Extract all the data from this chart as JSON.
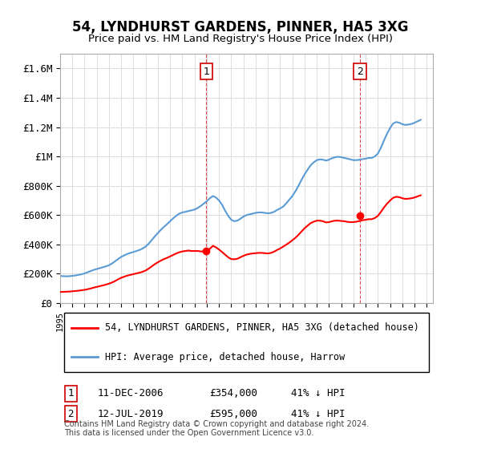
{
  "title": "54, LYNDHURST GARDENS, PINNER, HA5 3XG",
  "subtitle": "Price paid vs. HM Land Registry's House Price Index (HPI)",
  "title_fontsize": 13,
  "subtitle_fontsize": 11,
  "ylabel_ticks": [
    "£0",
    "£200K",
    "£400K",
    "£600K",
    "£800K",
    "£1M",
    "£1.2M",
    "£1.4M",
    "£1.6M"
  ],
  "ytick_values": [
    0,
    200000,
    400000,
    600000,
    800000,
    1000000,
    1200000,
    1400000,
    1600000
  ],
  "ylim": [
    0,
    1700000
  ],
  "xlim_start": 1995.0,
  "xlim_end": 2025.5,
  "hpi_color": "#5B9BD5",
  "price_color": "#FF0000",
  "marker1_x": 2006.95,
  "marker1_y": 354000,
  "marker2_x": 2019.54,
  "marker2_y": 595000,
  "vline1_x": 2006.95,
  "vline2_x": 2019.54,
  "legend_label1": "54, LYNDHURST GARDENS, PINNER, HA5 3XG (detached house)",
  "legend_label2": "HPI: Average price, detached house, Harrow",
  "table_row1": [
    "1",
    "11-DEC-2006",
    "£354,000",
    "41% ↓ HPI"
  ],
  "table_row2": [
    "2",
    "12-JUL-2019",
    "£595,000",
    "41% ↓ HPI"
  ],
  "footnote": "Contains HM Land Registry data © Crown copyright and database right 2024.\nThis data is licensed under the Open Government Licence v3.0.",
  "hpi_data_x": [
    1995.0,
    1995.25,
    1995.5,
    1995.75,
    1996.0,
    1996.25,
    1996.5,
    1996.75,
    1997.0,
    1997.25,
    1997.5,
    1997.75,
    1998.0,
    1998.25,
    1998.5,
    1998.75,
    1999.0,
    1999.25,
    1999.5,
    1999.75,
    2000.0,
    2000.25,
    2000.5,
    2000.75,
    2001.0,
    2001.25,
    2001.5,
    2001.75,
    2002.0,
    2002.25,
    2002.5,
    2002.75,
    2003.0,
    2003.25,
    2003.5,
    2003.75,
    2004.0,
    2004.25,
    2004.5,
    2004.75,
    2005.0,
    2005.25,
    2005.5,
    2005.75,
    2006.0,
    2006.25,
    2006.5,
    2006.75,
    2007.0,
    2007.25,
    2007.5,
    2007.75,
    2008.0,
    2008.25,
    2008.5,
    2008.75,
    2009.0,
    2009.25,
    2009.5,
    2009.75,
    2010.0,
    2010.25,
    2010.5,
    2010.75,
    2011.0,
    2011.25,
    2011.5,
    2011.75,
    2012.0,
    2012.25,
    2012.5,
    2012.75,
    2013.0,
    2013.25,
    2013.5,
    2013.75,
    2014.0,
    2014.25,
    2014.5,
    2014.75,
    2015.0,
    2015.25,
    2015.5,
    2015.75,
    2016.0,
    2016.25,
    2016.5,
    2016.75,
    2017.0,
    2017.25,
    2017.5,
    2017.75,
    2018.0,
    2018.25,
    2018.5,
    2018.75,
    2019.0,
    2019.25,
    2019.5,
    2019.75,
    2020.0,
    2020.25,
    2020.5,
    2020.75,
    2021.0,
    2021.25,
    2021.5,
    2021.75,
    2022.0,
    2022.25,
    2022.5,
    2022.75,
    2023.0,
    2023.25,
    2023.5,
    2023.75,
    2024.0,
    2024.25,
    2024.5
  ],
  "hpi_data_y": [
    185000,
    183000,
    182000,
    183000,
    185000,
    188000,
    192000,
    196000,
    202000,
    210000,
    218000,
    226000,
    232000,
    238000,
    244000,
    250000,
    258000,
    270000,
    285000,
    300000,
    315000,
    325000,
    335000,
    342000,
    348000,
    355000,
    362000,
    372000,
    385000,
    405000,
    430000,
    455000,
    478000,
    500000,
    520000,
    538000,
    558000,
    578000,
    595000,
    610000,
    618000,
    622000,
    628000,
    632000,
    638000,
    648000,
    662000,
    678000,
    695000,
    715000,
    730000,
    720000,
    700000,
    670000,
    630000,
    595000,
    568000,
    558000,
    562000,
    575000,
    590000,
    600000,
    605000,
    610000,
    615000,
    618000,
    618000,
    615000,
    612000,
    615000,
    622000,
    635000,
    645000,
    658000,
    680000,
    705000,
    730000,
    762000,
    800000,
    840000,
    878000,
    910000,
    940000,
    960000,
    975000,
    980000,
    978000,
    972000,
    978000,
    988000,
    995000,
    998000,
    995000,
    990000,
    985000,
    980000,
    975000,
    975000,
    978000,
    982000,
    985000,
    990000,
    990000,
    1000000,
    1020000,
    1060000,
    1110000,
    1155000,
    1195000,
    1225000,
    1235000,
    1230000,
    1220000,
    1215000,
    1218000,
    1222000,
    1230000,
    1240000,
    1250000
  ],
  "price_data_x": [
    1995.0,
    1995.25,
    1995.5,
    1995.75,
    1996.0,
    1996.25,
    1996.5,
    1996.75,
    1997.0,
    1997.25,
    1997.5,
    1997.75,
    1998.0,
    1998.25,
    1998.5,
    1998.75,
    1999.0,
    1999.25,
    1999.5,
    1999.75,
    2000.0,
    2000.25,
    2000.5,
    2000.75,
    2001.0,
    2001.25,
    2001.5,
    2001.75,
    2002.0,
    2002.25,
    2002.5,
    2002.75,
    2003.0,
    2003.25,
    2003.5,
    2003.75,
    2004.0,
    2004.25,
    2004.5,
    2004.75,
    2005.0,
    2005.25,
    2005.5,
    2005.75,
    2006.0,
    2006.25,
    2006.5,
    2006.75,
    2007.0,
    2007.25,
    2007.5,
    2007.75,
    2008.0,
    2008.25,
    2008.5,
    2008.75,
    2009.0,
    2009.25,
    2009.5,
    2009.75,
    2010.0,
    2010.25,
    2010.5,
    2010.75,
    2011.0,
    2011.25,
    2011.5,
    2011.75,
    2012.0,
    2012.25,
    2012.5,
    2012.75,
    2013.0,
    2013.25,
    2013.5,
    2013.75,
    2014.0,
    2014.25,
    2014.5,
    2014.75,
    2015.0,
    2015.25,
    2015.5,
    2015.75,
    2016.0,
    2016.25,
    2016.5,
    2016.75,
    2017.0,
    2017.25,
    2017.5,
    2017.75,
    2018.0,
    2018.25,
    2018.5,
    2018.75,
    2019.0,
    2019.25,
    2019.5,
    2019.75,
    2020.0,
    2020.25,
    2020.5,
    2020.75,
    2021.0,
    2021.25,
    2021.5,
    2021.75,
    2022.0,
    2022.25,
    2022.5,
    2022.75,
    2023.0,
    2023.25,
    2023.5,
    2023.75,
    2024.0,
    2024.25,
    2024.5
  ],
  "price_data_y": [
    75000,
    76000,
    77000,
    78000,
    80000,
    82000,
    84000,
    87000,
    90000,
    94000,
    99000,
    105000,
    110000,
    115000,
    120000,
    126000,
    132000,
    140000,
    150000,
    162000,
    172000,
    180000,
    187000,
    192000,
    197000,
    202000,
    207000,
    213000,
    222000,
    235000,
    250000,
    265000,
    278000,
    290000,
    300000,
    308000,
    318000,
    328000,
    338000,
    346000,
    352000,
    355000,
    358000,
    355000,
    355000,
    355000,
    352000,
    352000,
    354000,
    370000,
    390000,
    380000,
    365000,
    348000,
    330000,
    312000,
    300000,
    298000,
    302000,
    312000,
    322000,
    330000,
    335000,
    338000,
    340000,
    342000,
    342000,
    340000,
    338000,
    342000,
    350000,
    362000,
    372000,
    385000,
    398000,
    412000,
    428000,
    445000,
    465000,
    488000,
    510000,
    528000,
    545000,
    555000,
    562000,
    562000,
    558000,
    550000,
    552000,
    558000,
    562000,
    562000,
    560000,
    558000,
    554000,
    552000,
    552000,
    555000,
    560000,
    565000,
    568000,
    572000,
    572000,
    580000,
    595000,
    622000,
    652000,
    678000,
    700000,
    718000,
    725000,
    722000,
    715000,
    710000,
    712000,
    715000,
    720000,
    728000,
    735000
  ]
}
